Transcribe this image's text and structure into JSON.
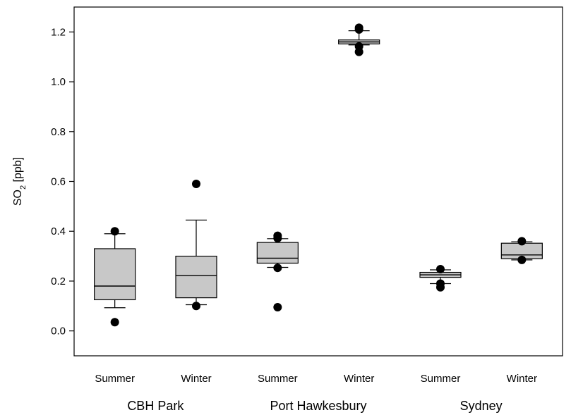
{
  "chart_data": {
    "type": "box",
    "title": "",
    "xlabel": "",
    "ylabel": {
      "main": "SO",
      "sub": "2",
      "rest": " [ppb]"
    },
    "ylim": [
      -0.1,
      1.3
    ],
    "yticks": [
      0.0,
      0.2,
      0.4,
      0.6,
      0.8,
      1.0,
      1.2
    ],
    "ytick_labels": [
      "0.0",
      "0.2",
      "0.4",
      "0.6",
      "0.8",
      "1.0",
      "1.2"
    ],
    "grid": false,
    "box_color": "#c8c8c8",
    "groups": [
      "CBH Park",
      "Port Hawkesbury",
      "Sydney"
    ],
    "categories": [
      "Summer",
      "Winter",
      "Summer",
      "Winter",
      "Summer",
      "Winter"
    ],
    "boxes": [
      {
        "group": 0,
        "category": "Summer",
        "whisker_low": 0.093,
        "q1": 0.125,
        "median": 0.18,
        "q3": 0.33,
        "whisker_high": 0.39,
        "outliers": [
          0.035,
          0.4
        ]
      },
      {
        "group": 0,
        "category": "Winter",
        "whisker_low": 0.105,
        "q1": 0.133,
        "median": 0.222,
        "q3": 0.3,
        "whisker_high": 0.445,
        "outliers": [
          0.1,
          0.59
        ]
      },
      {
        "group": 1,
        "category": "Summer",
        "whisker_low": 0.255,
        "q1": 0.272,
        "median": 0.292,
        "q3": 0.355,
        "whisker_high": 0.37,
        "outliers": [
          0.095,
          0.253,
          0.372,
          0.382
        ]
      },
      {
        "group": 1,
        "category": "Winter",
        "whisker_low": 1.148,
        "q1": 1.152,
        "median": 1.16,
        "q3": 1.168,
        "whisker_high": 1.205,
        "outliers": [
          1.12,
          1.142,
          1.21,
          1.217
        ]
      },
      {
        "group": 2,
        "category": "Summer",
        "whisker_low": 0.19,
        "q1": 0.215,
        "median": 0.225,
        "q3": 0.235,
        "whisker_high": 0.245,
        "outliers": [
          0.175,
          0.19,
          0.248
        ]
      },
      {
        "group": 2,
        "category": "Winter",
        "whisker_low": 0.285,
        "q1": 0.29,
        "median": 0.305,
        "q3": 0.352,
        "whisker_high": 0.358,
        "outliers": [
          0.285,
          0.36
        ]
      }
    ]
  }
}
